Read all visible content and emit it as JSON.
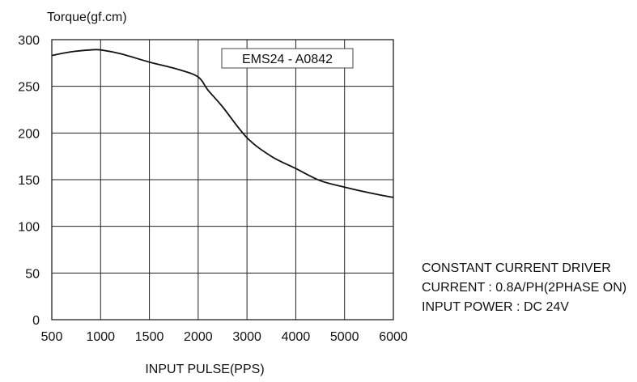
{
  "chart_data": {
    "type": "line",
    "ylabel": "Torque(gf.cm)",
    "xlabel": "INPUT PULSE(PPS)",
    "x_ticks": [
      500,
      1000,
      1500,
      2000,
      3000,
      4000,
      5000,
      6000
    ],
    "y_ticks": [
      0,
      50,
      100,
      150,
      200,
      250,
      300
    ],
    "ylim": [
      0,
      300
    ],
    "grid": true,
    "series": [
      {
        "name": "EMS24 - A0842",
        "x": [
          500,
          700,
          900,
          1000,
          1200,
          1500,
          1800,
          2000,
          2200,
          2500,
          3000,
          3500,
          4000,
          4500,
          5000,
          5500,
          6000
        ],
        "y": [
          283,
          287,
          289,
          289,
          285,
          276,
          268,
          260,
          246,
          228,
          195,
          175,
          162,
          149,
          142,
          136,
          131
        ]
      }
    ]
  },
  "notes": [
    "CONSTANT CURRENT DRIVER",
    "CURRENT : 0.8A/PH(2PHASE ON)",
    "INPUT POWER : DC 24V"
  ]
}
